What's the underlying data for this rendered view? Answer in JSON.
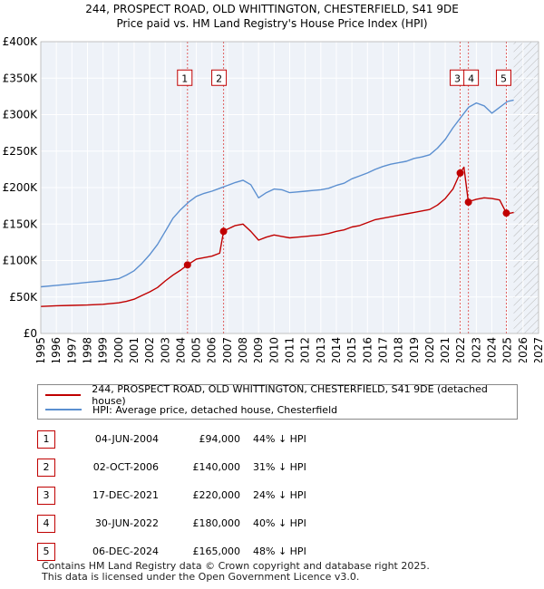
{
  "chart_data": {
    "type": "line",
    "title": "244, PROSPECT ROAD, OLD WHITTINGTON, CHESTERFIELD, S41 9DE",
    "subtitle": "Price paid vs. HM Land Registry's House Price Index (HPI)",
    "xlabel": "",
    "ylabel": "",
    "xlim": [
      1995,
      2027
    ],
    "ylim": [
      0,
      400000
    ],
    "x_ticks": [
      "1995",
      "1996",
      "1997",
      "1998",
      "1999",
      "2000",
      "2001",
      "2002",
      "2003",
      "2004",
      "2005",
      "2006",
      "2007",
      "2008",
      "2009",
      "2010",
      "2011",
      "2012",
      "2013",
      "2014",
      "2015",
      "2016",
      "2017",
      "2018",
      "2019",
      "2020",
      "2021",
      "2022",
      "2023",
      "2024",
      "2025",
      "2026",
      "2027"
    ],
    "y_ticks": [
      {
        "value": 0,
        "label": "£0"
      },
      {
        "value": 50000,
        "label": "£50K"
      },
      {
        "value": 100000,
        "label": "£100K"
      },
      {
        "value": 150000,
        "label": "£150K"
      },
      {
        "value": 200000,
        "label": "£200K"
      },
      {
        "value": 250000,
        "label": "£250K"
      },
      {
        "value": 300000,
        "label": "£300K"
      },
      {
        "value": 350000,
        "label": "£350K"
      },
      {
        "value": 400000,
        "label": "£400K"
      }
    ],
    "grid": true,
    "forecast_from": 2025.4,
    "series": [
      {
        "name": "244, PROSPECT ROAD, OLD WHITTINGTON, CHESTERFIELD, S41 9DE (detached house)",
        "color": "#c00000",
        "x": [
          1995.0,
          1996.0,
          1997.0,
          1998.0,
          1999.0,
          2000.0,
          2000.5,
          2001.0,
          2001.5,
          2002.0,
          2002.5,
          2003.0,
          2003.5,
          2004.0,
          2004.43,
          2005.0,
          2005.5,
          2006.0,
          2006.5,
          2006.75,
          2007.0,
          2007.5,
          2008.0,
          2008.5,
          2009.0,
          2009.5,
          2010.0,
          2010.5,
          2011.0,
          2011.5,
          2012.0,
          2012.5,
          2013.0,
          2013.5,
          2014.0,
          2014.5,
          2015.0,
          2015.5,
          2016.0,
          2016.5,
          2017.0,
          2017.5,
          2018.0,
          2018.5,
          2019.0,
          2019.5,
          2020.0,
          2020.5,
          2021.0,
          2021.5,
          2021.96,
          2022.2,
          2022.49,
          2022.7,
          2023.0,
          2023.5,
          2024.0,
          2024.5,
          2024.93,
          2025.0,
          2025.4
        ],
        "values": [
          37000,
          38000,
          38500,
          39000,
          40000,
          42000,
          44000,
          47000,
          52000,
          57000,
          63000,
          72000,
          80000,
          87000,
          94000,
          102000,
          104000,
          106000,
          110000,
          140000,
          143000,
          148000,
          150000,
          140000,
          128000,
          132000,
          135000,
          133000,
          131000,
          132000,
          133000,
          134000,
          135000,
          137000,
          140000,
          142000,
          146000,
          148000,
          152000,
          156000,
          158000,
          160000,
          162000,
          164000,
          166000,
          168000,
          170000,
          176000,
          185000,
          198000,
          220000,
          228000,
          180000,
          182000,
          184000,
          186000,
          185000,
          183000,
          165000,
          164000,
          166000
        ]
      },
      {
        "name": "HPI: Average price, detached house, Chesterfield",
        "color": "#5b8fd0",
        "x": [
          1995.0,
          1996.0,
          1997.0,
          1998.0,
          1999.0,
          2000.0,
          2000.5,
          2001.0,
          2001.5,
          2002.0,
          2002.5,
          2003.0,
          2003.5,
          2004.0,
          2004.5,
          2005.0,
          2005.5,
          2006.0,
          2006.5,
          2007.0,
          2007.5,
          2008.0,
          2008.5,
          2009.0,
          2009.5,
          2010.0,
          2010.5,
          2011.0,
          2011.5,
          2012.0,
          2012.5,
          2013.0,
          2013.5,
          2014.0,
          2014.5,
          2015.0,
          2015.5,
          2016.0,
          2016.5,
          2017.0,
          2017.5,
          2018.0,
          2018.5,
          2019.0,
          2019.5,
          2020.0,
          2020.5,
          2021.0,
          2021.5,
          2022.0,
          2022.5,
          2023.0,
          2023.5,
          2024.0,
          2024.5,
          2025.0,
          2025.4
        ],
        "values": [
          64000,
          66000,
          68000,
          70000,
          72000,
          75000,
          80000,
          86000,
          96000,
          108000,
          122000,
          140000,
          158000,
          170000,
          180000,
          188000,
          192000,
          195000,
          199000,
          203000,
          207000,
          210000,
          204000,
          186000,
          193000,
          198000,
          197000,
          193000,
          194000,
          195000,
          196000,
          197000,
          199000,
          203000,
          206000,
          212000,
          216000,
          220000,
          225000,
          229000,
          232000,
          234000,
          236000,
          240000,
          242000,
          245000,
          254000,
          266000,
          282000,
          296000,
          310000,
          316000,
          312000,
          302000,
          310000,
          318000,
          320000
        ]
      }
    ],
    "sales": [
      {
        "marker": "1",
        "x": 2004.43,
        "price": 94000
      },
      {
        "marker": "2",
        "x": 2006.75,
        "price": 140000
      },
      {
        "marker": "3",
        "x": 2021.96,
        "price": 220000
      },
      {
        "marker": "4",
        "x": 2022.49,
        "price": 180000
      },
      {
        "marker": "5",
        "x": 2024.93,
        "price": 165000
      }
    ]
  },
  "legend": {
    "property_label": "244, PROSPECT ROAD, OLD WHITTINGTON, CHESTERFIELD, S41 9DE (detached house)",
    "hpi_label": "HPI: Average price, detached house, Chesterfield"
  },
  "sales_table": [
    {
      "marker": "1",
      "date": "04-JUN-2004",
      "price": "£94,000",
      "hpi": "44% ↓ HPI"
    },
    {
      "marker": "2",
      "date": "02-OCT-2006",
      "price": "£140,000",
      "hpi": "31% ↓ HPI"
    },
    {
      "marker": "3",
      "date": "17-DEC-2021",
      "price": "£220,000",
      "hpi": "24% ↓ HPI"
    },
    {
      "marker": "4",
      "date": "30-JUN-2022",
      "price": "£180,000",
      "hpi": "40% ↓ HPI"
    },
    {
      "marker": "5",
      "date": "06-DEC-2024",
      "price": "£165,000",
      "hpi": "48% ↓ HPI"
    }
  ],
  "footer": {
    "line1": "Contains HM Land Registry data © Crown copyright and database right 2025.",
    "line2": "This data is licensed under the Open Government Licence v3.0."
  }
}
